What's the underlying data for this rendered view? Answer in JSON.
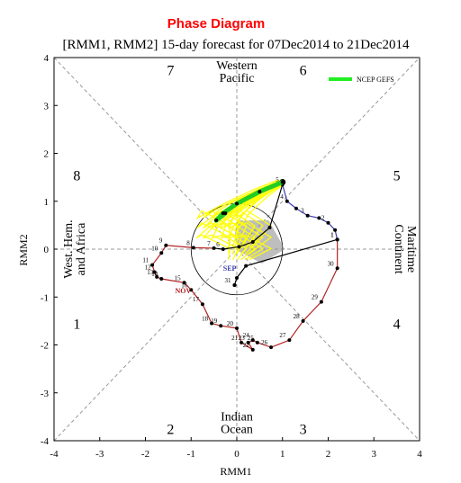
{
  "chart_data": {
    "type": "scatter",
    "title": "Phase Diagram",
    "subtitle": "[RMM1, RMM2] 15-day forecast for 07Dec2014 to 21Dec2014",
    "xlabel": "RMM1",
    "ylabel": "RMM2",
    "xlim": [
      -4,
      4
    ],
    "ylim": [
      -4,
      4
    ],
    "xticks": [
      "-4",
      "-3",
      "-2",
      "-1",
      "0",
      "1",
      "2",
      "3",
      "4"
    ],
    "yticks": [
      "-4",
      "-3",
      "-2",
      "-1",
      "0",
      "1",
      "2",
      "3",
      "4"
    ],
    "phase_numbers": [
      "1",
      "2",
      "3",
      "4",
      "5",
      "6",
      "7",
      "8"
    ],
    "region_labels": {
      "top_line1": "Western",
      "top_line2": "Pacific",
      "bottom_line1": "Indian",
      "bottom_line2": "Ocean",
      "left_line1": "West. Hem.",
      "left_line2": "and Africa",
      "right_line1": "Maritime",
      "right_line2": "Continent"
    },
    "legend": {
      "entries": [
        "NCEP GEFS"
      ],
      "placement": "top-right"
    },
    "month_labels": {
      "nov": "NOV",
      "sep": "SEP"
    },
    "colors": {
      "nov_track": "#b22222",
      "sep_track": "#3b3bb0",
      "ensemble_mean": "#22cc22",
      "ensemble_members": "#ffff00",
      "spread_shade": "#888888",
      "title": "#ff0000"
    },
    "observed_track": [
      {
        "label": "1",
        "x": 2.2,
        "y": 0.2
      },
      {
        "label": "",
        "x": 2.15,
        "y": 0.4
      },
      {
        "label": "2",
        "x": 2.0,
        "y": 0.55
      },
      {
        "label": "",
        "x": 1.8,
        "y": 0.65
      },
      {
        "label": "3",
        "x": 1.55,
        "y": 0.7
      },
      {
        "label": "",
        "x": 1.3,
        "y": 0.85
      },
      {
        "label": "4",
        "x": 1.1,
        "y": 1.0
      },
      {
        "label": "5",
        "x": 1.0,
        "y": 1.35
      },
      {
        "label": "",
        "x": 0.72,
        "y": 0.45
      },
      {
        "label": "",
        "x": 0.35,
        "y": 0.15
      },
      {
        "label": "",
        "x": 0.05,
        "y": 0.05
      },
      {
        "label": "6",
        "x": -0.3,
        "y": 0.0
      },
      {
        "label": "7",
        "x": -0.5,
        "y": 0.02
      },
      {
        "label": "8",
        "x": -0.95,
        "y": 0.03
      },
      {
        "label": "9",
        "x": -1.55,
        "y": 0.08
      },
      {
        "label": "10",
        "x": -1.65,
        "y": -0.08
      },
      {
        "label": "11",
        "x": -1.85,
        "y": -0.33
      },
      {
        "label": "12",
        "x": -1.8,
        "y": -0.48
      },
      {
        "label": "13",
        "x": -1.75,
        "y": -0.58
      },
      {
        "label": "14",
        "x": -1.65,
        "y": -0.62
      },
      {
        "label": "15",
        "x": -1.15,
        "y": -0.7
      },
      {
        "label": "16",
        "x": -1.0,
        "y": -0.85
      },
      {
        "label": "17",
        "x": -0.75,
        "y": -1.15
      },
      {
        "label": "18",
        "x": -0.55,
        "y": -1.55
      },
      {
        "label": "19",
        "x": -0.35,
        "y": -1.6
      },
      {
        "label": "20",
        "x": 0.0,
        "y": -1.65
      },
      {
        "label": "21",
        "x": 0.1,
        "y": -1.95
      },
      {
        "label": "22",
        "x": 0.35,
        "y": -2.1
      },
      {
        "label": "23",
        "x": 0.25,
        "y": -1.95
      },
      {
        "label": "24",
        "x": 0.35,
        "y": -1.9
      },
      {
        "label": "25",
        "x": 0.45,
        "y": -1.95
      },
      {
        "label": "26",
        "x": 0.75,
        "y": -2.05
      },
      {
        "label": "27",
        "x": 1.15,
        "y": -1.9
      },
      {
        "label": "28",
        "x": 1.45,
        "y": -1.5
      },
      {
        "label": "29",
        "x": 1.85,
        "y": -1.1
      },
      {
        "label": "30",
        "x": 2.2,
        "y": -0.4
      },
      {
        "label": "1",
        "x": 2.2,
        "y": 0.2
      },
      {
        "label": "",
        "x": 0.2,
        "y": -0.35
      },
      {
        "label": "",
        "x": 0.0,
        "y": -0.6
      },
      {
        "label": "",
        "x": -0.05,
        "y": -0.75
      },
      {
        "label": "31",
        "x": -0.05,
        "y": -0.75
      }
    ],
    "ensemble_mean": [
      {
        "x": 1.0,
        "y": 1.4
      },
      {
        "x": 0.5,
        "y": 1.2
      },
      {
        "x": 0.0,
        "y": 0.95
      },
      {
        "x": -0.3,
        "y": 0.75
      },
      {
        "x": -0.45,
        "y": 0.6
      },
      {
        "x": -0.25,
        "y": 0.75
      }
    ]
  }
}
